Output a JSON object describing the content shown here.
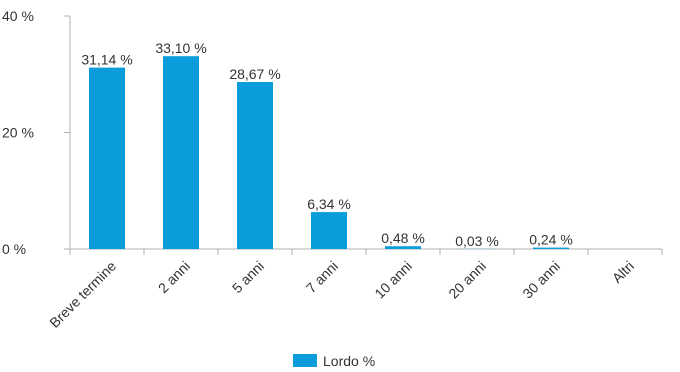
{
  "chart_data": {
    "type": "bar",
    "categories": [
      "Breve termine",
      "2 anni",
      "5 anni",
      "7 anni",
      "10 anni",
      "20 anni",
      "30 anni",
      "Altri"
    ],
    "series": [
      {
        "name": "Lordo %",
        "values": [
          31.14,
          33.1,
          28.67,
          6.34,
          0.48,
          0.03,
          0.24,
          0
        ],
        "labels": [
          "31,14 %",
          "33,10 %",
          "28,67 %",
          "6,34 %",
          "0,48 %",
          "0,03 %",
          "0,24 %",
          ""
        ],
        "color": "#0b9ddb"
      }
    ],
    "y_ticks": [
      {
        "value": 0,
        "label": "0 %"
      },
      {
        "value": 20,
        "label": "20 %"
      },
      {
        "value": 40,
        "label": "40 %"
      }
    ],
    "ylim": [
      0,
      40
    ],
    "grid": false,
    "legend": {
      "position": "bottom",
      "label": "Lordo %"
    }
  }
}
